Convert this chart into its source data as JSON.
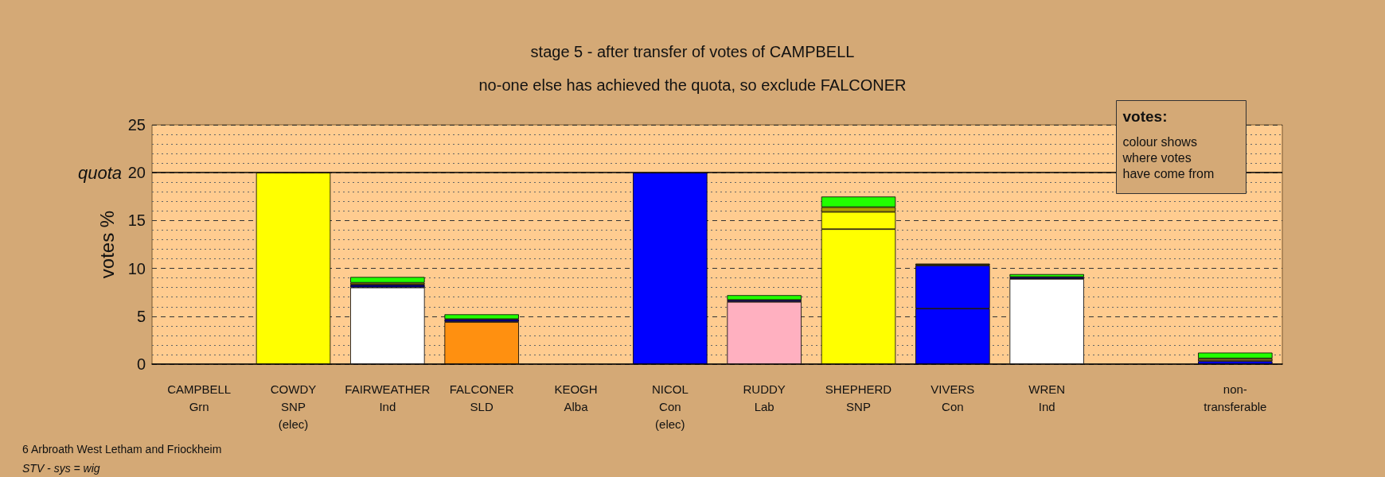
{
  "chart_data": {
    "type": "bar",
    "title": "stage 5 - after transfer of votes of CAMPBELL",
    "subtitle": "no-one else has achieved the quota, so exclude FALCONER",
    "ylabel": "votes %",
    "categories": [
      "CAMPBELL\nGrn",
      "COWDY\nSNP\n(elec)",
      "FAIRWEATHER\nInd",
      "FALCONER\nSLD",
      "KEOGH\nAlba",
      "NICOL\nCon\n(elec)",
      "RUDDY\nLab",
      "SHEPHERD\nSNP",
      "VIVERS\nCon",
      "WREN\nInd",
      null,
      "non-\ntransferable"
    ],
    "stacked": true,
    "series": [
      {
        "values": [
          0,
          20,
          8.0,
          4.4,
          0,
          20,
          6.5,
          14.1,
          5.8,
          8.9,
          null,
          0.3
        ],
        "colors": [
          "#22ff00",
          "#ffff00",
          "#ffffff",
          "#ff9010",
          "#22ff00",
          "#0000ff",
          "#ffb0c0",
          "#ffff00",
          "#0000ff",
          "#ffffff",
          "#ffffff",
          "#0000ff"
        ]
      },
      {
        "values": [
          null,
          null,
          0.3,
          0.3,
          null,
          null,
          0.2,
          1.8,
          4.5,
          0.2,
          null,
          0.3
        ],
        "colors": [
          "#000080",
          "#000080",
          "#000080",
          "#000080",
          "#000080",
          "#000080",
          "#000080",
          "#ffff00",
          "#0000ff",
          "#000080",
          "#000080",
          "#7a6a20"
        ]
      },
      {
        "values": [
          null,
          null,
          0.2,
          0.5,
          null,
          null,
          0.5,
          0.5,
          0.2,
          null,
          null,
          0.6
        ],
        "colors": [
          "#22ff00",
          "#22ff00",
          "#b0a000",
          "#22ff00",
          "#22ff00",
          "#22ff00",
          "#22ff00",
          "#b0a000",
          "#404000",
          "#b0a000",
          "#22ff00",
          "#22ff00"
        ]
      },
      {
        "values": [
          null,
          null,
          0.6,
          null,
          null,
          null,
          null,
          1.1,
          null,
          0.3,
          null,
          null
        ],
        "colors": [
          "#22ff00",
          "#22ff00",
          "#22ff00",
          "#22ff00",
          "#22ff00",
          "#22ff00",
          "#22ff00",
          "#22ff00",
          "#22ff00",
          "#22ff00",
          "#22ff00",
          "#22ff00"
        ]
      }
    ],
    "ylim": [
      0,
      25
    ],
    "yticks": [
      0,
      5,
      10,
      15,
      20,
      25
    ],
    "grid": "y",
    "ref_lines": [
      {
        "axis": "y",
        "value": 20,
        "label": "quota",
        "color": "#000000",
        "line_style": "solid"
      }
    ],
    "annotations": [
      "votes:",
      "colour shows\nwhere votes\nhave come from",
      "6 Arbroath West Letham and Friockheim",
      "STV - sys = wig"
    ]
  }
}
